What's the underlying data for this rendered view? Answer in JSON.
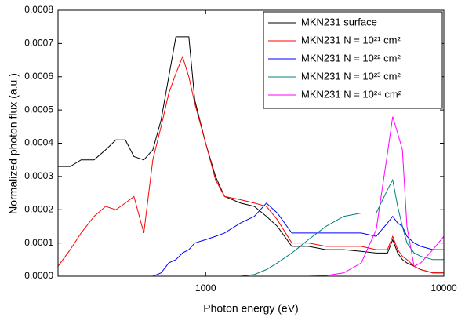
{
  "chart_data": {
    "type": "line",
    "x_label": "Photon energy (eV)",
    "y_label": "Normalized photon flux (a.u.)",
    "x_scale": "log",
    "xlim": [
      240,
      10000
    ],
    "xticks": [
      1000,
      10000
    ],
    "ylim": [
      0,
      0.0008
    ],
    "yticks": [
      {
        "value": 0,
        "label": "0.0000"
      },
      {
        "value": 0.0001,
        "label": "0.0001"
      },
      {
        "value": 0.0002,
        "label": "0.0002"
      },
      {
        "value": 0.0003,
        "label": "0.0003"
      },
      {
        "value": 0.0004,
        "label": "0.0004"
      },
      {
        "value": 0.0005,
        "label": "0.0005"
      },
      {
        "value": 0.0006,
        "label": "0.0006"
      },
      {
        "value": 0.0007,
        "label": "0.0007"
      },
      {
        "value": 0.0008,
        "label": "0.0008"
      }
    ],
    "legend_position": "upper right",
    "x": [
      240,
      270,
      300,
      340,
      380,
      420,
      460,
      500,
      550,
      600,
      650,
      700,
      750,
      800,
      850,
      900,
      1000,
      1100,
      1200,
      1400,
      1600,
      1800,
      2000,
      2300,
      2700,
      3200,
      3800,
      4500,
      5200,
      5800,
      6100,
      6400,
      6700,
      7000,
      7500,
      8000,
      9000,
      10000
    ],
    "series": [
      {
        "name": "MKN231 surface",
        "color": "#000000",
        "values": [
          0.00033,
          0.00033,
          0.00035,
          0.00035,
          0.00038,
          0.00041,
          0.00041,
          0.00036,
          0.00035,
          0.00038,
          0.00047,
          0.0006,
          0.00072,
          0.00072,
          0.00072,
          0.00053,
          0.0004,
          0.0003,
          0.00024,
          0.00022,
          0.00021,
          0.00018,
          0.00015,
          9e-05,
          9e-05,
          8e-05,
          8e-05,
          7.5e-05,
          7e-05,
          7e-05,
          0.00011,
          7e-05,
          5e-05,
          4e-05,
          3e-05,
          2e-05,
          1e-05,
          1e-05
        ]
      },
      {
        "name": "MKN231 N = 10²¹ cm²",
        "color": "#ff0000",
        "values": [
          3e-05,
          8e-05,
          0.00013,
          0.00018,
          0.00021,
          0.0002,
          0.00022,
          0.00024,
          0.00013,
          0.00035,
          0.00045,
          0.00055,
          0.00061,
          0.00066,
          0.0006,
          0.00052,
          0.0004,
          0.00029,
          0.00024,
          0.00023,
          0.00022,
          0.00021,
          0.00017,
          0.0001,
          0.0001,
          9e-05,
          9e-05,
          9e-05,
          8e-05,
          8e-05,
          0.00012,
          8e-05,
          6e-05,
          5e-05,
          3e-05,
          2e-05,
          1e-05,
          1e-05
        ]
      },
      {
        "name": "MKN231 N = 10²² cm²",
        "color": "#0000ff",
        "values": [
          0,
          0,
          0,
          0,
          0,
          0,
          0,
          0,
          0,
          0,
          1e-05,
          4e-05,
          5e-05,
          7e-05,
          8e-05,
          0.0001,
          0.00011,
          0.00012,
          0.00013,
          0.00016,
          0.00018,
          0.00022,
          0.00019,
          0.00013,
          0.00013,
          0.00013,
          0.00013,
          0.00013,
          0.00012,
          0.00016,
          0.00018,
          0.00016,
          0.00015,
          0.00012,
          0.0001,
          9e-05,
          8e-05,
          8e-05
        ]
      },
      {
        "name": "MKN231 N = 10²³ cm²",
        "color": "#008080",
        "values": [
          0,
          0,
          0,
          0,
          0,
          0,
          0,
          0,
          0,
          0,
          0,
          0,
          0,
          0,
          0,
          0,
          0,
          0,
          0,
          0,
          5e-06,
          2e-05,
          4e-05,
          7e-05,
          0.00011,
          0.00015,
          0.00018,
          0.00019,
          0.00019,
          0.00026,
          0.00029,
          0.00021,
          0.00015,
          0.0001,
          7e-05,
          6e-05,
          5e-05,
          5e-05
        ]
      },
      {
        "name": "MKN231 N = 10²⁴ cm²",
        "color": "#ff00ff",
        "values": [
          0,
          0,
          0,
          0,
          0,
          0,
          0,
          0,
          0,
          0,
          0,
          0,
          0,
          0,
          0,
          0,
          0,
          0,
          0,
          0,
          0,
          0,
          0,
          0,
          0,
          2e-06,
          1e-05,
          4e-05,
          0.00014,
          0.00037,
          0.00048,
          0.00043,
          0.00038,
          0.00015,
          3e-05,
          4e-05,
          8e-05,
          0.00012
        ]
      }
    ]
  }
}
